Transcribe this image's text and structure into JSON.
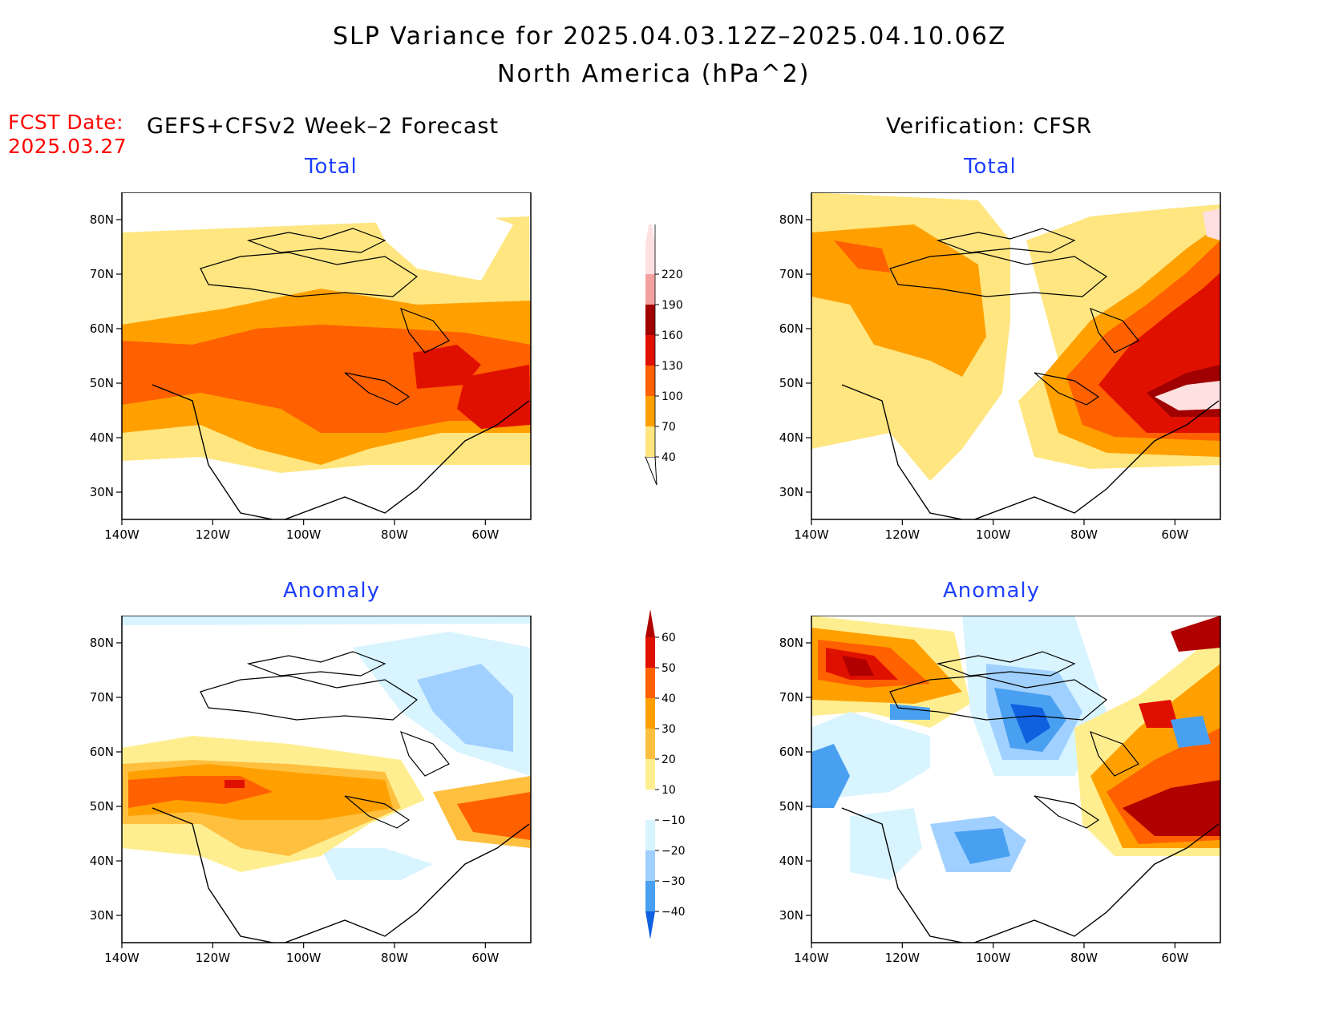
{
  "title": {
    "line1": "SLP Variance for 2025.04.03.12Z–2025.04.10.06Z",
    "line2": "North America (hPa^2)"
  },
  "fcst": {
    "label": "FCST Date:",
    "date": "2025.03.27"
  },
  "left_header": "GEFS+CFSv2 Week–2 Forecast",
  "right_header": "Verification: CFSR",
  "panels": [
    {
      "id": "fcst-total",
      "title": "Total"
    },
    {
      "id": "verif-total",
      "title": "Total"
    },
    {
      "id": "fcst-anomaly",
      "title": "Anomaly"
    },
    {
      "id": "verif-anomaly",
      "title": "Anomaly"
    }
  ],
  "axes": {
    "lon_labels": [
      "140W",
      "120W",
      "100W",
      "80W",
      "60W"
    ],
    "lat_labels": [
      "80N",
      "70N",
      "60N",
      "50N",
      "40N",
      "30N"
    ],
    "lon_range": [
      -140,
      -50
    ],
    "lat_range": [
      25,
      85
    ]
  },
  "total_colorbar": {
    "levels": [
      "40",
      "70",
      "100",
      "130",
      "160",
      "190",
      "220"
    ],
    "colors": [
      "#ffe680",
      "#ffa000",
      "#ff6000",
      "#e01000",
      "#a00000",
      "#f4a0a0",
      "#ffe0e0"
    ]
  },
  "anomaly_colorbar": {
    "levels": [
      "60",
      "50",
      "40",
      "30",
      "20",
      "10",
      "−10",
      "−20",
      "−30",
      "−40"
    ],
    "colors": [
      "#b00000",
      "#e01000",
      "#ff6000",
      "#ffa000",
      "#ffc040",
      "#ffee90",
      "#ffffff",
      "#d8f4ff",
      "#a0d0ff",
      "#4aa0f0",
      "#1060e0"
    ]
  },
  "colors": {
    "title_blue": "#1f3fff",
    "fcst_red": "#ff0000"
  }
}
